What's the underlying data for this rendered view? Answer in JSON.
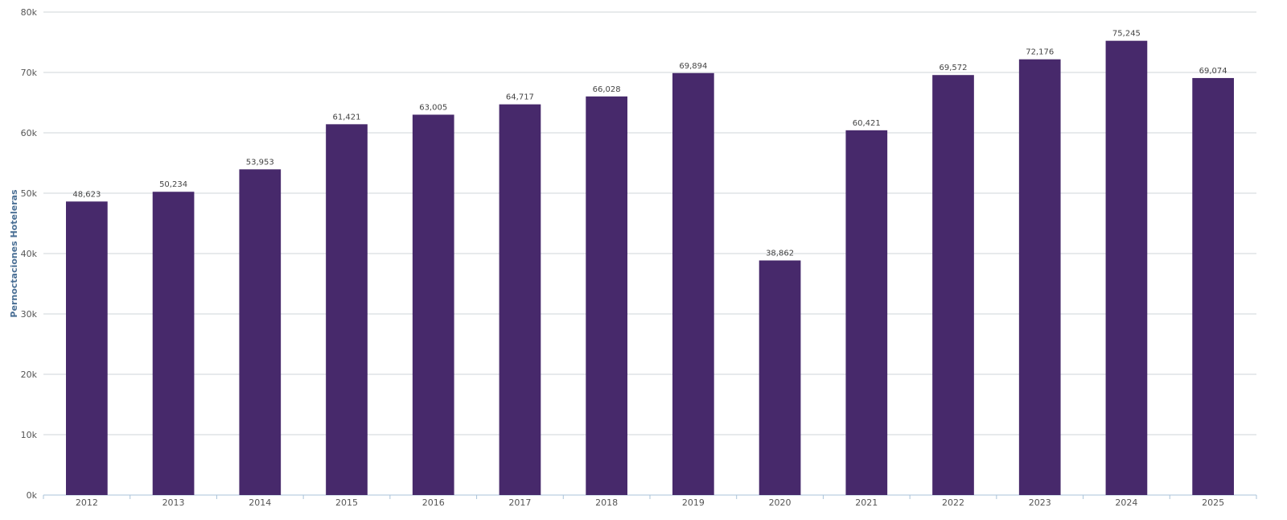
{
  "chart_data": {
    "type": "bar",
    "categories": [
      "2012",
      "2013",
      "2014",
      "2015",
      "2016",
      "2017",
      "2018",
      "2019",
      "2020",
      "2021",
      "2022",
      "2023",
      "2024",
      "2025"
    ],
    "values": [
      48623,
      50234,
      53953,
      61421,
      63005,
      64717,
      66028,
      69894,
      38862,
      60421,
      69572,
      72176,
      75245,
      69074
    ],
    "value_labels": [
      "48,623",
      "50,234",
      "53,953",
      "61,421",
      "63,005",
      "64,717",
      "66,028",
      "69,894",
      "38,862",
      "60,421",
      "69,572",
      "72,176",
      "75,245",
      "69,074"
    ],
    "ylabel": "Pernoctaciones Hoteleras",
    "ylim": [
      0,
      80000
    ],
    "yticks": [
      0,
      10000,
      20000,
      30000,
      40000,
      50000,
      60000,
      70000,
      80000
    ],
    "ytick_labels": [
      "0k",
      "10k",
      "20k",
      "30k",
      "40k",
      "50k",
      "60k",
      "70k",
      "80k"
    ],
    "grid": true,
    "bar_color": "#47296b"
  }
}
